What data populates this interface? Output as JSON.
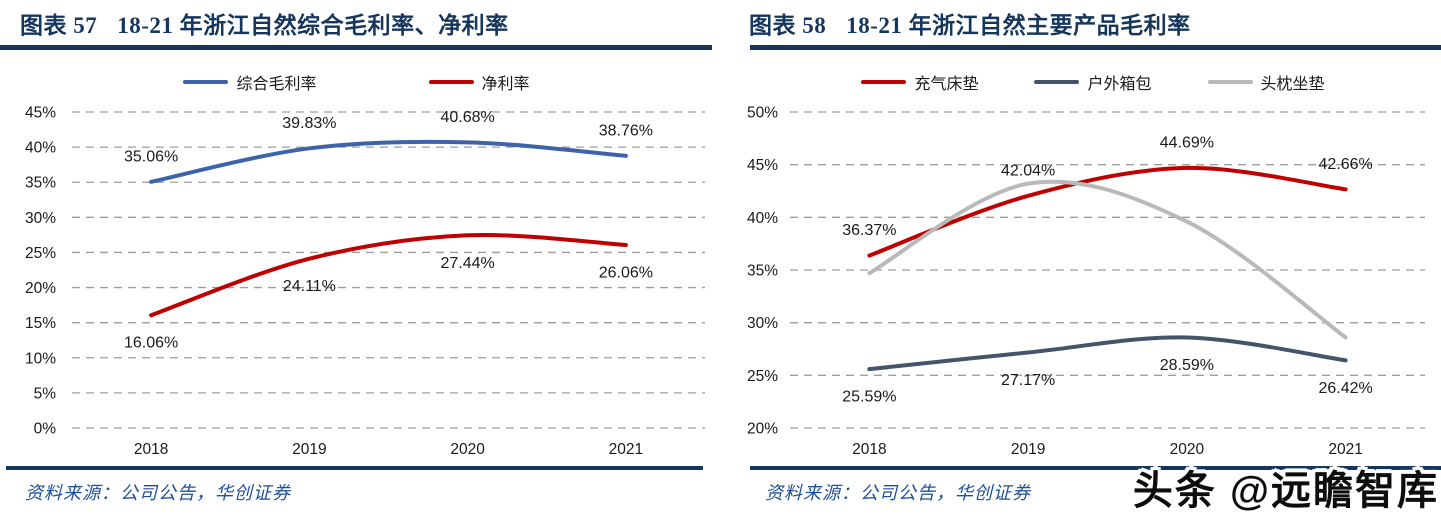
{
  "chart_data": [
    {
      "type": "line",
      "figure_label": "图表 57",
      "title": "18-21 年浙江自然综合毛利率、净利率",
      "categories": [
        "2018",
        "2019",
        "2020",
        "2021"
      ],
      "series": [
        {
          "name": "综合毛利率",
          "color": "#3d63a8",
          "values": [
            35.06,
            39.83,
            40.68,
            38.76
          ],
          "data_labels": "above"
        },
        {
          "name": "净利率",
          "color": "#c00000",
          "values": [
            16.06,
            24.11,
            27.44,
            26.06
          ],
          "data_labels": "below"
        }
      ],
      "ylim": [
        0,
        45
      ],
      "ytick_step": 5,
      "ytick_suffix": "%",
      "grid": "horizontal-dashed",
      "legend_position": "top",
      "smooth": true,
      "source": "资料来源：公司公告，华创证券"
    },
    {
      "type": "line",
      "figure_label": "图表 58",
      "title": "18-21 年浙江自然主要产品毛利率",
      "categories": [
        "2018",
        "2019",
        "2020",
        "2021"
      ],
      "series": [
        {
          "name": "充气床垫",
          "color": "#c00000",
          "values": [
            36.37,
            42.04,
            44.69,
            42.66
          ],
          "data_labels": "above"
        },
        {
          "name": "户外箱包",
          "color": "#44546a",
          "values": [
            25.59,
            27.17,
            28.59,
            26.42
          ],
          "data_labels": "below"
        },
        {
          "name": "头枕坐垫",
          "color": "#b9b9b9",
          "values": [
            34.7,
            43.2,
            39.6,
            28.6
          ],
          "data_labels": "none",
          "values_estimated": true
        }
      ],
      "ylim": [
        20,
        50
      ],
      "ytick_step": 5,
      "ytick_suffix": "%",
      "grid": "horizontal-dashed",
      "legend_position": "top",
      "smooth": true,
      "source": "资料来源：公司公告，华创证券"
    }
  ],
  "watermark": {
    "text": "头条 @远瞻智库"
  }
}
